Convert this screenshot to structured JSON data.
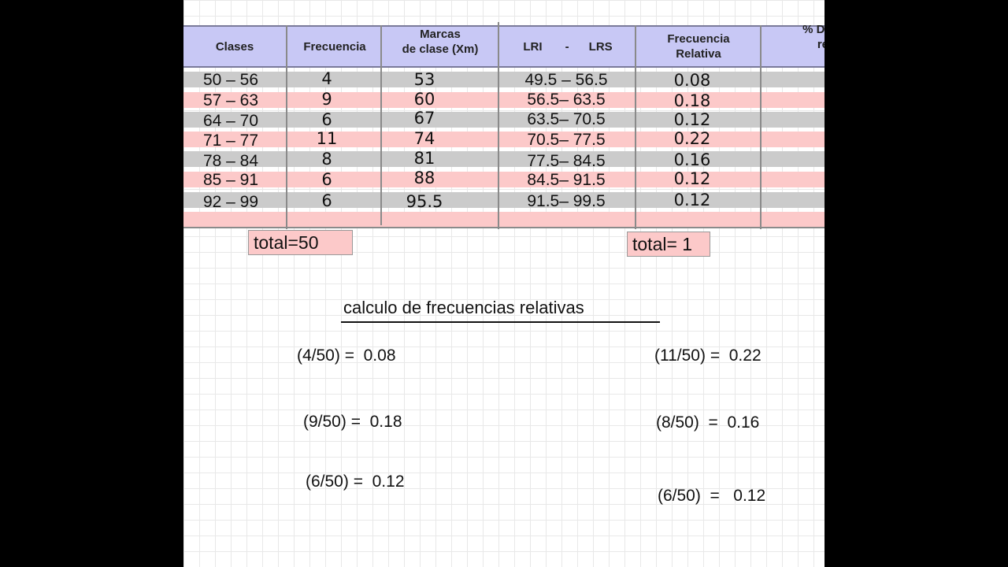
{
  "table": {
    "headers": [
      "Clases",
      "Frecuencia",
      "Marcas\nde clase (Xm)",
      "LRI       -      LRS",
      "Frecuencia\nRelativa",
      "% De Fr\nrel"
    ],
    "rows": [
      {
        "clase": "50 – 56",
        "frecuencia": "4",
        "marca": "53",
        "limites": "49.5 – 56.5",
        "relativa": "0.08"
      },
      {
        "clase": "57 – 63",
        "frecuencia": "9",
        "marca": "60",
        "limites": "56.5– 63.5",
        "relativa": "0.18"
      },
      {
        "clase": "64 – 70",
        "frecuencia": "6",
        "marca": "67",
        "limites": "63.5– 70.5",
        "relativa": "0.12"
      },
      {
        "clase": "71 – 77",
        "frecuencia": "11",
        "marca": "74",
        "limites": "70.5– 77.5",
        "relativa": "0.22"
      },
      {
        "clase": "78 – 84",
        "frecuencia": "8",
        "marca": "81",
        "limites": "77.5– 84.5",
        "relativa": "0.16"
      },
      {
        "clase": "85 – 91",
        "frecuencia": "6",
        "marca": "88",
        "limites": "84.5– 91.5",
        "relativa": "0.12"
      },
      {
        "clase": "92 – 99",
        "frecuencia": "6",
        "marca": "95.5",
        "limites": "91.5– 99.5",
        "relativa": "0.12"
      }
    ]
  },
  "totals": {
    "frecuencia": "total=50",
    "relativa": "total= 1"
  },
  "calculations": {
    "title": "calculo de frecuencias relativas",
    "items": [
      "(4/50) =  0.08",
      "(9/50) =  0.18",
      "(6/50) =  0.12",
      "(11/50) =  0.22",
      "(8/50)  =  0.16",
      "(6/50)  =   0.12"
    ]
  }
}
